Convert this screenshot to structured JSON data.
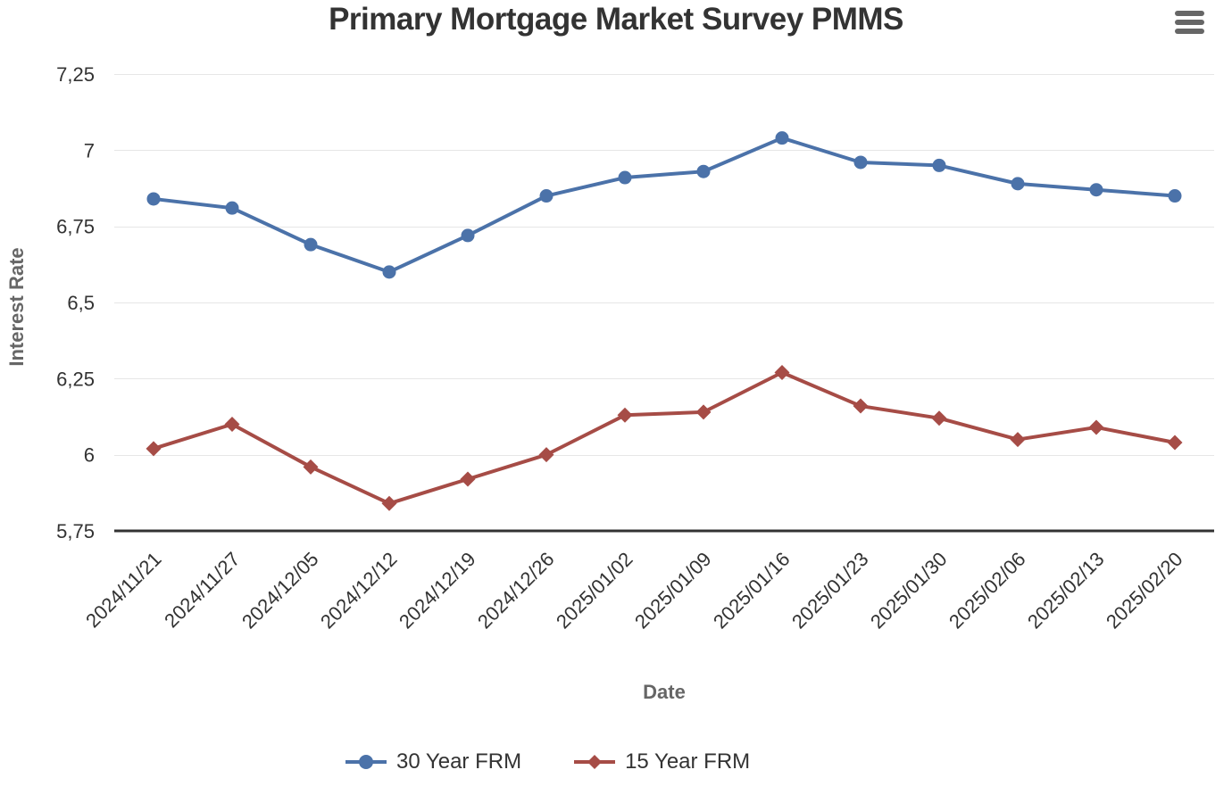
{
  "title": "Primary Mortgage Market Survey PMMS",
  "menu_button": {
    "icon": "hamburger-menu-icon"
  },
  "chart_data": {
    "type": "line",
    "title": "Primary Mortgage Market Survey PMMS",
    "xlabel": "Date",
    "ylabel": "Interest Rate",
    "ylim": [
      5.75,
      7.25
    ],
    "yticks": [
      7.25,
      7.0,
      6.75,
      6.5,
      6.25,
      6.0,
      5.75
    ],
    "ytick_labels": [
      "7,25",
      "7",
      "6,75",
      "6,5",
      "6,25",
      "6",
      "5,75"
    ],
    "grid": true,
    "legend_position": "bottom",
    "categories": [
      "2024/11/21",
      "2024/11/27",
      "2024/12/05",
      "2024/12/12",
      "2024/12/19",
      "2024/12/26",
      "2025/01/02",
      "2025/01/09",
      "2025/01/16",
      "2025/01/23",
      "2025/01/30",
      "2025/02/06",
      "2025/02/13",
      "2025/02/20"
    ],
    "series": [
      {
        "name": "30 Year FRM",
        "marker": "circle",
        "color": "#4b72a9",
        "values": [
          6.84,
          6.81,
          6.69,
          6.6,
          6.72,
          6.85,
          6.91,
          6.93,
          7.04,
          6.96,
          6.95,
          6.89,
          6.87,
          6.85
        ]
      },
      {
        "name": "15 Year FRM",
        "marker": "diamond",
        "color": "#a64c46",
        "values": [
          6.02,
          6.1,
          5.96,
          5.84,
          5.92,
          6.0,
          6.13,
          6.14,
          6.27,
          6.16,
          6.12,
          6.05,
          6.09,
          6.04
        ]
      }
    ]
  },
  "colors": {
    "background": "#ffffff",
    "grid_line": "#e6e6e6",
    "axis_line": "#333333",
    "title_text": "#333333",
    "tick_label": "#333333",
    "axis_title": "#666666",
    "menu_icon": "#666666"
  }
}
